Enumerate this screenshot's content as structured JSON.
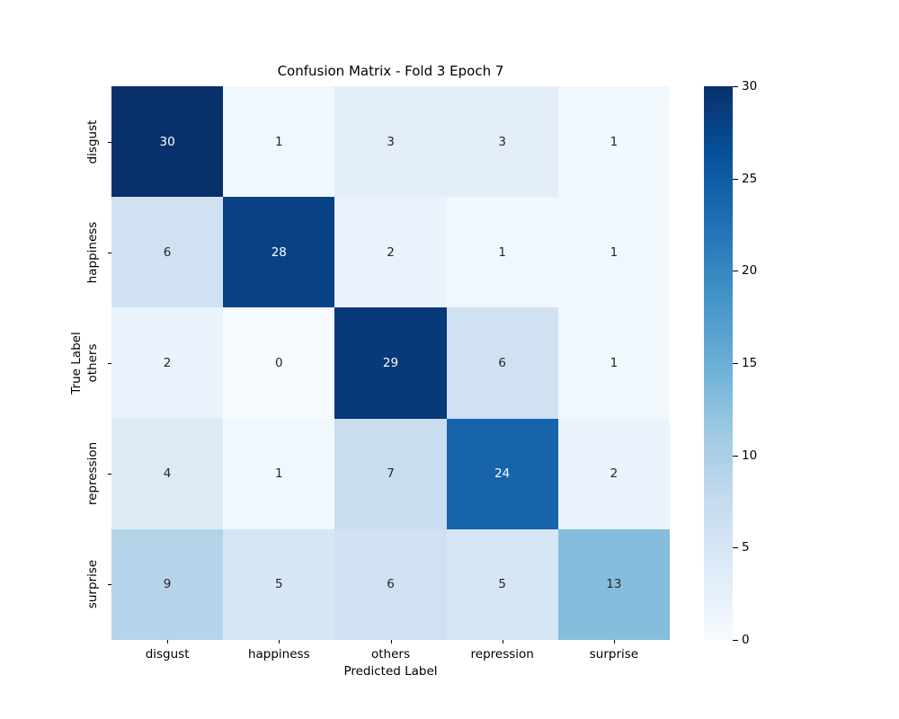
{
  "figure": {
    "background": "#ffffff"
  },
  "chart_data": {
    "type": "heatmap",
    "title": "Confusion Matrix - Fold 3 Epoch 7",
    "xlabel": "Predicted Label",
    "ylabel": "True Label",
    "x_categories": [
      "disgust",
      "happiness",
      "others",
      "repression",
      "surprise"
    ],
    "y_categories": [
      "disgust",
      "happiness",
      "others",
      "repression",
      "surprise"
    ],
    "matrix": [
      [
        30,
        1,
        3,
        3,
        1
      ],
      [
        6,
        28,
        2,
        1,
        1
      ],
      [
        2,
        0,
        29,
        6,
        1
      ],
      [
        4,
        1,
        7,
        24,
        2
      ],
      [
        9,
        5,
        6,
        5,
        13
      ]
    ],
    "vmin": 0,
    "vmax": 30,
    "colorbar_ticks": [
      0,
      5,
      10,
      15,
      20,
      25,
      30
    ],
    "colorbar_position": "right",
    "grid": false,
    "colormap": {
      "name": "Blues",
      "stops": [
        {
          "pos": 0.0,
          "color": "#f7fbff"
        },
        {
          "pos": 0.125,
          "color": "#deebf7"
        },
        {
          "pos": 0.25,
          "color": "#c6dbef"
        },
        {
          "pos": 0.375,
          "color": "#9ecae1"
        },
        {
          "pos": 0.5,
          "color": "#6baed6"
        },
        {
          "pos": 0.625,
          "color": "#4292c6"
        },
        {
          "pos": 0.75,
          "color": "#2171b5"
        },
        {
          "pos": 0.875,
          "color": "#08519c"
        },
        {
          "pos": 1.0,
          "color": "#08306b"
        }
      ]
    },
    "annotation_color_dark": "#262626",
    "annotation_color_light": "#ffffff",
    "tick_color": "#000000"
  }
}
